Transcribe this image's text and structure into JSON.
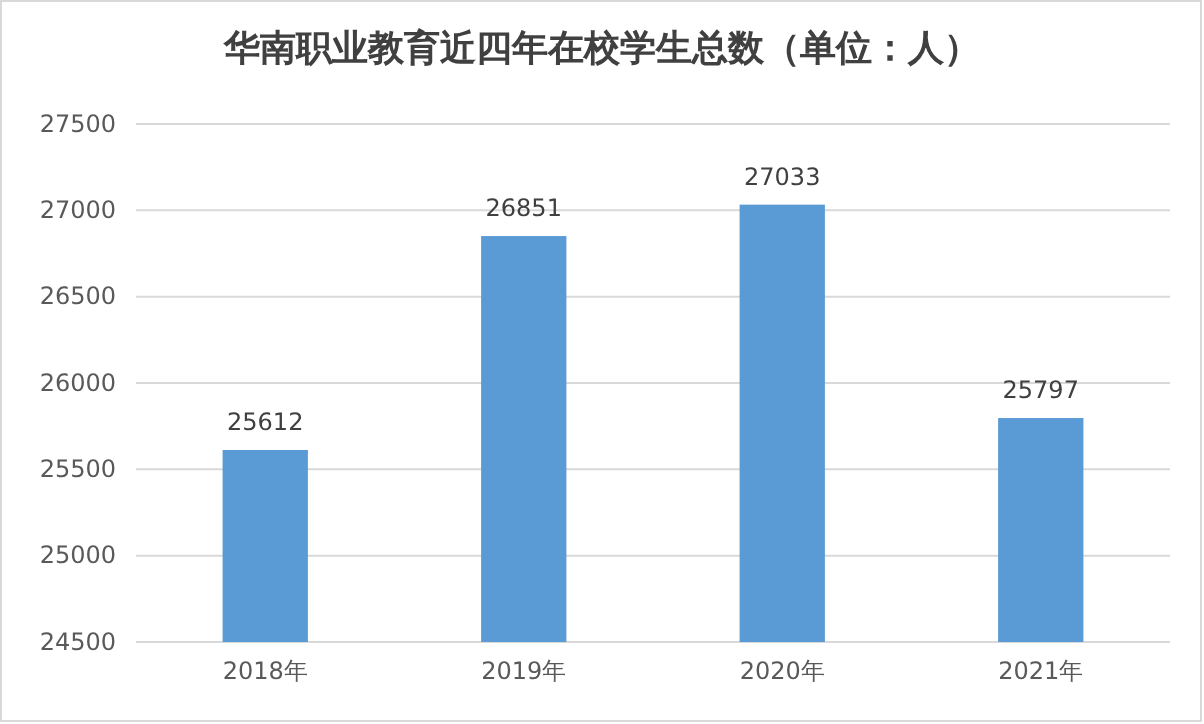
{
  "chart_data": {
    "type": "bar",
    "title": "华南职业教育近四年在校学生总数（单位：人）",
    "categories": [
      "2018年",
      "2019年",
      "2020年",
      "2021年"
    ],
    "values": [
      25612,
      26851,
      27033,
      25797
    ],
    "color": "#5b9bd5",
    "ylim": [
      24500,
      27500
    ],
    "yticks": [
      24500,
      25000,
      25500,
      26000,
      26500,
      27000,
      27500
    ],
    "grid": "y",
    "data_labels": true
  }
}
